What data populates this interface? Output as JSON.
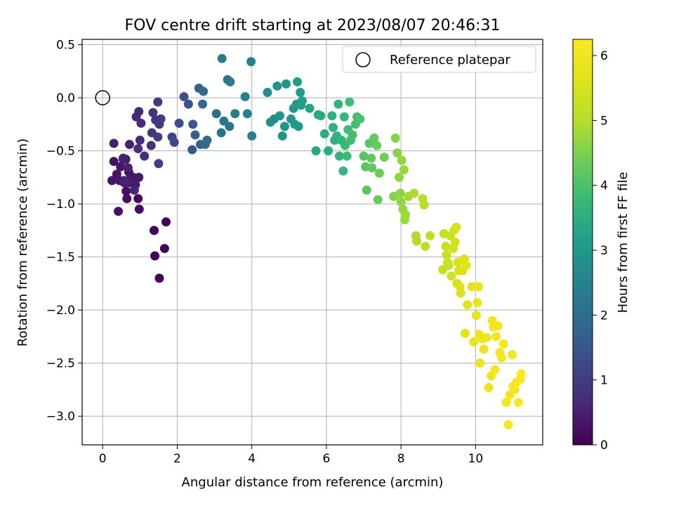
{
  "chart_data": {
    "type": "scatter",
    "title": "FOV centre drift starting at 2023/08/07 20:46:31",
    "xlabel": "Angular distance from reference (arcmin)",
    "ylabel": "Rotation from reference (arcmin)",
    "xlim": [
      -0.55,
      11.8
    ],
    "ylim": [
      -3.27,
      0.55
    ],
    "x_ticks": [
      0,
      2,
      4,
      6,
      8,
      10
    ],
    "y_ticks": [
      0.5,
      0.0,
      -0.5,
      -1.0,
      -1.5,
      -2.0,
      -2.5,
      -3.0
    ],
    "x_tick_labels": [
      "0",
      "2",
      "4",
      "6",
      "8",
      "10"
    ],
    "y_tick_labels": [
      "0.5",
      "0.0",
      "−0.5",
      "−1.0",
      "−1.5",
      "−2.0",
      "−2.5",
      "−3.0"
    ],
    "grid": true,
    "legend": {
      "placement": "top-right",
      "label": "Reference platepar"
    },
    "reference_point": {
      "x": 0,
      "y": 0
    },
    "colorbar": {
      "label": "Hours from first FF file",
      "range": [
        0,
        6.25
      ],
      "ticks": [
        0,
        1,
        2,
        3,
        4,
        5,
        6
      ],
      "tick_labels": [
        "0",
        "1",
        "2",
        "3",
        "4",
        "5",
        "6"
      ],
      "colormap": "viridis"
    },
    "series": [
      {
        "color_by": "hours",
        "points": [
          [
            1.38,
            -1.25,
            0.05
          ],
          [
            1.4,
            -1.49,
            0.06
          ],
          [
            1.52,
            -1.7,
            0.07
          ],
          [
            1.7,
            -1.17,
            0.08
          ],
          [
            1.66,
            -1.42,
            0.09
          ],
          [
            0.95,
            -0.95,
            0.15
          ],
          [
            0.98,
            -1.05,
            0.18
          ],
          [
            0.65,
            -0.95,
            0.2
          ],
          [
            0.63,
            -0.88,
            0.22
          ],
          [
            0.42,
            -1.07,
            0.25
          ],
          [
            0.7,
            -0.7,
            0.27
          ],
          [
            0.82,
            -0.75,
            0.28
          ],
          [
            0.3,
            -0.6,
            0.3
          ],
          [
            0.38,
            -0.72,
            0.32
          ],
          [
            0.45,
            -0.78,
            0.34
          ],
          [
            0.25,
            -0.78,
            0.35
          ],
          [
            0.48,
            -0.65,
            0.36
          ],
          [
            0.55,
            -0.58,
            0.37
          ],
          [
            0.62,
            -0.58,
            0.38
          ],
          [
            0.58,
            -0.8,
            0.38
          ],
          [
            0.72,
            -0.8,
            0.39
          ],
          [
            0.88,
            -0.82,
            0.4
          ],
          [
            0.97,
            -0.75,
            0.42
          ],
          [
            0.68,
            -0.78,
            0.44
          ],
          [
            0.3,
            -0.43,
            0.45
          ],
          [
            0.72,
            -0.44,
            0.5
          ],
          [
            0.68,
            -0.66,
            0.52
          ],
          [
            0.55,
            -0.57,
            0.53
          ],
          [
            0.58,
            -0.78,
            0.54
          ],
          [
            0.85,
            -0.87,
            0.55
          ],
          [
            0.9,
            -0.18,
            0.62
          ],
          [
            0.97,
            -0.13,
            0.65
          ],
          [
            1.03,
            -0.24,
            0.68
          ],
          [
            1.0,
            -0.4,
            0.72
          ],
          [
            0.95,
            -0.48,
            0.75
          ],
          [
            1.12,
            -0.55,
            0.78
          ],
          [
            1.3,
            -0.45,
            0.82
          ],
          [
            1.35,
            -0.14,
            0.85
          ],
          [
            1.32,
            -0.33,
            0.88
          ],
          [
            1.42,
            -0.21,
            0.9
          ],
          [
            1.48,
            -0.04,
            0.92
          ],
          [
            1.52,
            -0.25,
            0.95
          ],
          [
            1.56,
            -0.2,
            0.97
          ],
          [
            1.5,
            -0.62,
            1.0
          ],
          [
            1.48,
            -0.37,
            1.05
          ],
          [
            1.86,
            -0.37,
            1.2
          ],
          [
            1.92,
            -0.42,
            1.25
          ],
          [
            2.05,
            -0.24,
            1.3
          ],
          [
            2.18,
            0.01,
            1.4
          ],
          [
            2.3,
            -0.06,
            1.45
          ],
          [
            2.42,
            -0.25,
            1.55
          ],
          [
            2.4,
            -0.49,
            1.6
          ],
          [
            2.48,
            -0.35,
            1.65
          ],
          [
            2.62,
            -0.44,
            1.75
          ],
          [
            2.58,
            0.09,
            1.8
          ],
          [
            2.7,
            0.06,
            1.85
          ],
          [
            2.68,
            -0.06,
            1.9
          ],
          [
            2.75,
            -0.44,
            1.95
          ],
          [
            2.8,
            -0.4,
            2.0
          ],
          [
            3.05,
            -0.15,
            2.05
          ],
          [
            3.18,
            -0.33,
            2.15
          ],
          [
            3.25,
            -0.22,
            2.18
          ],
          [
            3.4,
            -0.27,
            2.22
          ],
          [
            3.35,
            0.17,
            2.25
          ],
          [
            3.42,
            0.15,
            2.28
          ],
          [
            3.2,
            0.37,
            2.3
          ],
          [
            3.55,
            -0.15,
            2.35
          ],
          [
            3.82,
            0.01,
            2.4
          ],
          [
            3.88,
            -0.15,
            2.45
          ],
          [
            4.0,
            -0.36,
            2.5
          ],
          [
            3.98,
            0.34,
            2.52
          ],
          [
            4.42,
            0.05,
            2.7
          ],
          [
            4.5,
            -0.23,
            2.75
          ],
          [
            4.6,
            -0.2,
            2.8
          ],
          [
            4.68,
            0.11,
            2.85
          ],
          [
            4.75,
            -0.17,
            2.88
          ],
          [
            4.82,
            -0.36,
            2.9
          ],
          [
            4.88,
            -0.27,
            2.92
          ],
          [
            4.92,
            0.13,
            2.95
          ],
          [
            5.05,
            -0.2,
            2.98
          ],
          [
            5.12,
            -0.1,
            3.0
          ],
          [
            5.15,
            -0.25,
            3.02
          ],
          [
            5.2,
            -0.06,
            3.05
          ],
          [
            5.22,
            0.15,
            3.08
          ],
          [
            5.25,
            -0.27,
            3.1
          ],
          [
            5.3,
            0.05,
            3.12
          ],
          [
            5.32,
            -0.07,
            3.15
          ],
          [
            5.35,
            -0.03,
            3.18
          ],
          [
            5.55,
            -0.1,
            3.25
          ],
          [
            5.72,
            -0.5,
            3.35
          ],
          [
            5.78,
            -0.16,
            3.38
          ],
          [
            5.85,
            -0.17,
            3.42
          ],
          [
            5.95,
            -0.34,
            3.45
          ],
          [
            6.05,
            -0.5,
            3.5
          ],
          [
            6.15,
            -0.17,
            3.55
          ],
          [
            6.18,
            -0.28,
            3.6
          ],
          [
            6.22,
            -0.4,
            3.62
          ],
          [
            6.28,
            -0.36,
            3.65
          ],
          [
            6.32,
            -0.06,
            3.68
          ],
          [
            6.35,
            -0.55,
            3.7
          ],
          [
            6.4,
            -0.4,
            3.72
          ],
          [
            6.45,
            -0.69,
            3.75
          ],
          [
            6.48,
            -0.18,
            3.78
          ],
          [
            6.5,
            -0.45,
            3.8
          ],
          [
            6.55,
            -0.55,
            3.82
          ],
          [
            6.58,
            -0.3,
            3.85
          ],
          [
            6.62,
            -0.04,
            3.88
          ],
          [
            6.65,
            -0.4,
            3.9
          ],
          [
            6.7,
            -0.35,
            3.92
          ],
          [
            6.78,
            -0.25,
            3.95
          ],
          [
            6.82,
            -0.18,
            3.98
          ],
          [
            6.9,
            -0.2,
            4.0
          ],
          [
            7.0,
            -0.55,
            4.1
          ],
          [
            7.05,
            -0.65,
            4.12
          ],
          [
            7.08,
            -0.87,
            4.15
          ],
          [
            7.15,
            -0.43,
            4.18
          ],
          [
            7.2,
            -0.57,
            4.2
          ],
          [
            7.22,
            -0.66,
            4.22
          ],
          [
            7.28,
            -0.38,
            4.25
          ],
          [
            7.35,
            -0.45,
            4.28
          ],
          [
            7.38,
            -0.96,
            4.3
          ],
          [
            7.42,
            -0.71,
            4.32
          ],
          [
            7.55,
            -0.56,
            4.35
          ],
          [
            7.8,
            -0.93,
            4.55
          ],
          [
            7.85,
            -0.38,
            4.58
          ],
          [
            7.9,
            -0.52,
            4.6
          ],
          [
            7.95,
            -0.75,
            4.62
          ],
          [
            7.98,
            -0.9,
            4.65
          ],
          [
            8.0,
            -0.98,
            4.68
          ],
          [
            8.02,
            -0.59,
            4.7
          ],
          [
            8.05,
            -1.05,
            4.72
          ],
          [
            8.08,
            -0.68,
            4.75
          ],
          [
            8.1,
            -1.15,
            4.78
          ],
          [
            8.12,
            -1.1,
            4.8
          ],
          [
            8.2,
            -0.93,
            4.85
          ],
          [
            8.35,
            -0.9,
            4.92
          ],
          [
            8.4,
            -1.3,
            4.95
          ],
          [
            8.42,
            -1.35,
            4.98
          ],
          [
            8.58,
            -0.95,
            5.02
          ],
          [
            8.62,
            -1.01,
            5.05
          ],
          [
            8.65,
            -1.4,
            5.08
          ],
          [
            8.78,
            -1.3,
            5.12
          ],
          [
            9.15,
            -1.28,
            5.22
          ],
          [
            9.12,
            -1.62,
            5.25
          ],
          [
            9.2,
            -1.4,
            5.28
          ],
          [
            9.22,
            -1.48,
            5.3
          ],
          [
            9.25,
            -1.55,
            5.32
          ],
          [
            9.28,
            -1.58,
            5.35
          ],
          [
            9.32,
            -1.3,
            5.38
          ],
          [
            9.35,
            -1.68,
            5.4
          ],
          [
            9.4,
            -1.42,
            5.42
          ],
          [
            9.42,
            -1.25,
            5.45
          ],
          [
            9.45,
            -1.36,
            5.48
          ],
          [
            9.48,
            -1.22,
            5.5
          ],
          [
            9.5,
            -1.75,
            5.52
          ],
          [
            9.52,
            -1.55,
            5.55
          ],
          [
            9.55,
            -1.63,
            5.58
          ],
          [
            9.58,
            -1.78,
            5.6
          ],
          [
            9.6,
            -1.84,
            5.62
          ],
          [
            9.65,
            -1.63,
            5.65
          ],
          [
            9.7,
            -1.52,
            5.68
          ],
          [
            9.75,
            -1.58,
            5.7
          ],
          [
            9.72,
            -2.22,
            5.72
          ],
          [
            9.78,
            -1.95,
            5.75
          ],
          [
            9.9,
            -1.78,
            5.78
          ],
          [
            9.95,
            -2.3,
            5.8
          ],
          [
            10.02,
            -2.05,
            5.82
          ],
          [
            10.05,
            -1.93,
            5.85
          ],
          [
            10.08,
            -1.78,
            5.87
          ],
          [
            10.1,
            -2.23,
            5.88
          ],
          [
            10.12,
            -2.5,
            5.9
          ],
          [
            10.18,
            -2.27,
            5.92
          ],
          [
            10.22,
            -2.37,
            5.94
          ],
          [
            10.3,
            -2.26,
            5.96
          ],
          [
            10.35,
            -2.73,
            5.97
          ],
          [
            10.42,
            -2.62,
            5.98
          ],
          [
            10.45,
            -2.1,
            6.0
          ],
          [
            10.48,
            -2.16,
            6.01
          ],
          [
            10.52,
            -2.56,
            6.02
          ],
          [
            10.55,
            -2.25,
            6.03
          ],
          [
            10.6,
            -2.15,
            6.04
          ],
          [
            10.65,
            -2.4,
            6.05
          ],
          [
            10.7,
            -2.45,
            6.06
          ],
          [
            10.75,
            -2.32,
            6.07
          ],
          [
            10.82,
            -2.87,
            6.08
          ],
          [
            10.88,
            -3.08,
            6.09
          ],
          [
            10.92,
            -2.8,
            6.1
          ],
          [
            10.98,
            -2.42,
            6.11
          ],
          [
            11.0,
            -2.72,
            6.12
          ],
          [
            11.05,
            -2.75,
            6.13
          ],
          [
            11.1,
            -2.68,
            6.14
          ],
          [
            11.15,
            -2.87,
            6.15
          ],
          [
            11.2,
            -2.65,
            6.17
          ],
          [
            11.22,
            -2.6,
            6.2
          ]
        ]
      }
    ]
  }
}
